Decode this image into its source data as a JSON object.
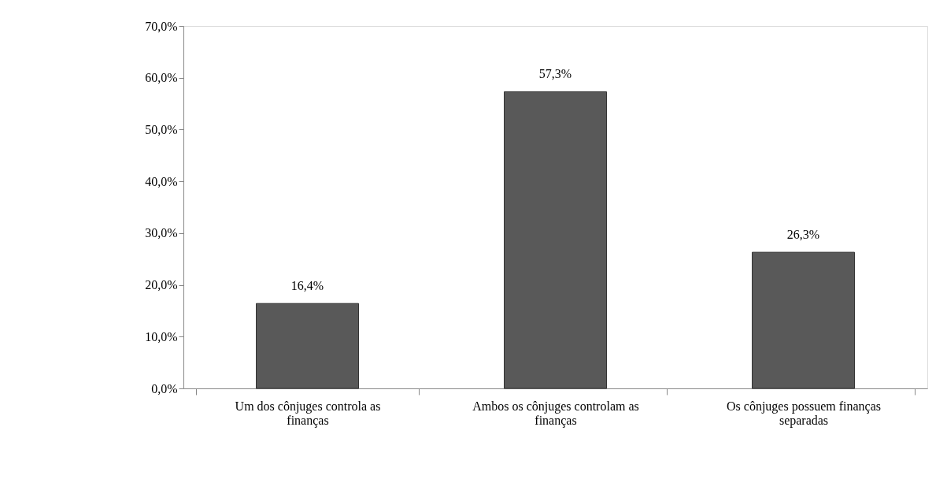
{
  "chart_data": {
    "type": "bar",
    "categories": [
      "Um dos cônjuges controla as finanças",
      "Ambos os cônjuges controlam as finanças",
      "Os cônjuges possuem finanças separadas"
    ],
    "values": [
      16.4,
      57.3,
      26.3
    ],
    "value_labels": [
      "16,4%",
      "57,3%",
      "26,3%"
    ],
    "color": "#595959",
    "ylim": [
      0,
      70
    ],
    "yticks": [
      {
        "value": 0,
        "label": "0,0%"
      },
      {
        "value": 10,
        "label": "10,0%"
      },
      {
        "value": 20,
        "label": "20,0%"
      },
      {
        "value": 30,
        "label": "30,0%"
      },
      {
        "value": 40,
        "label": "40,0%"
      },
      {
        "value": 50,
        "label": "50,0%"
      },
      {
        "value": 60,
        "label": "60,0%"
      },
      {
        "value": 70,
        "label": "70,0%"
      }
    ]
  }
}
